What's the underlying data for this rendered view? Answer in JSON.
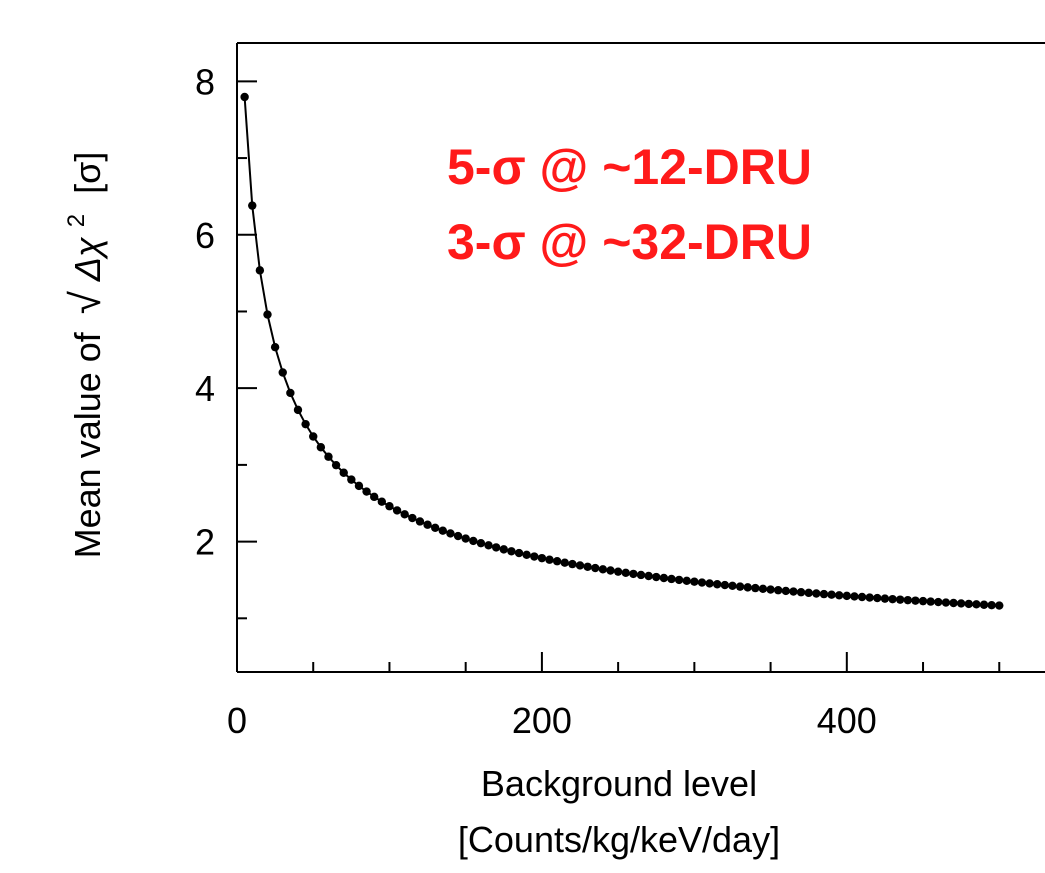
{
  "chart_data": {
    "type": "scatter",
    "title": "",
    "xlabel_line1": "Background level",
    "xlabel_line2": "[Counts/kg/keV/day]",
    "ylabel_prefix": "Mean value of",
    "ylabel_delta_chi": "Δχ",
    "ylabel_exponent": "2",
    "ylabel_unit": "[σ]",
    "xlim": [
      0,
      530
    ],
    "ylim": [
      0.3,
      8.5
    ],
    "x_ticks": [
      0,
      200,
      400
    ],
    "y_ticks": [
      2,
      4,
      6,
      8
    ],
    "x_tick_labels": [
      "0",
      "200",
      "400"
    ],
    "y_tick_labels": [
      "2",
      "4",
      "6",
      "8"
    ],
    "x_minor_step": 50,
    "y_minor_step": 1,
    "annotations": [
      "5-σ @ ~12-DRU",
      "3-σ @ ~32-DRU"
    ],
    "series": [
      {
        "values_model": "y = 24.4 / sqrt(x + 5) + 0.08",
        "x_start": 5,
        "x_end": 500,
        "x_step": 5,
        "marker": "circle",
        "color": "#000000",
        "connected": true
      }
    ],
    "legend": "none",
    "grid": false
  }
}
